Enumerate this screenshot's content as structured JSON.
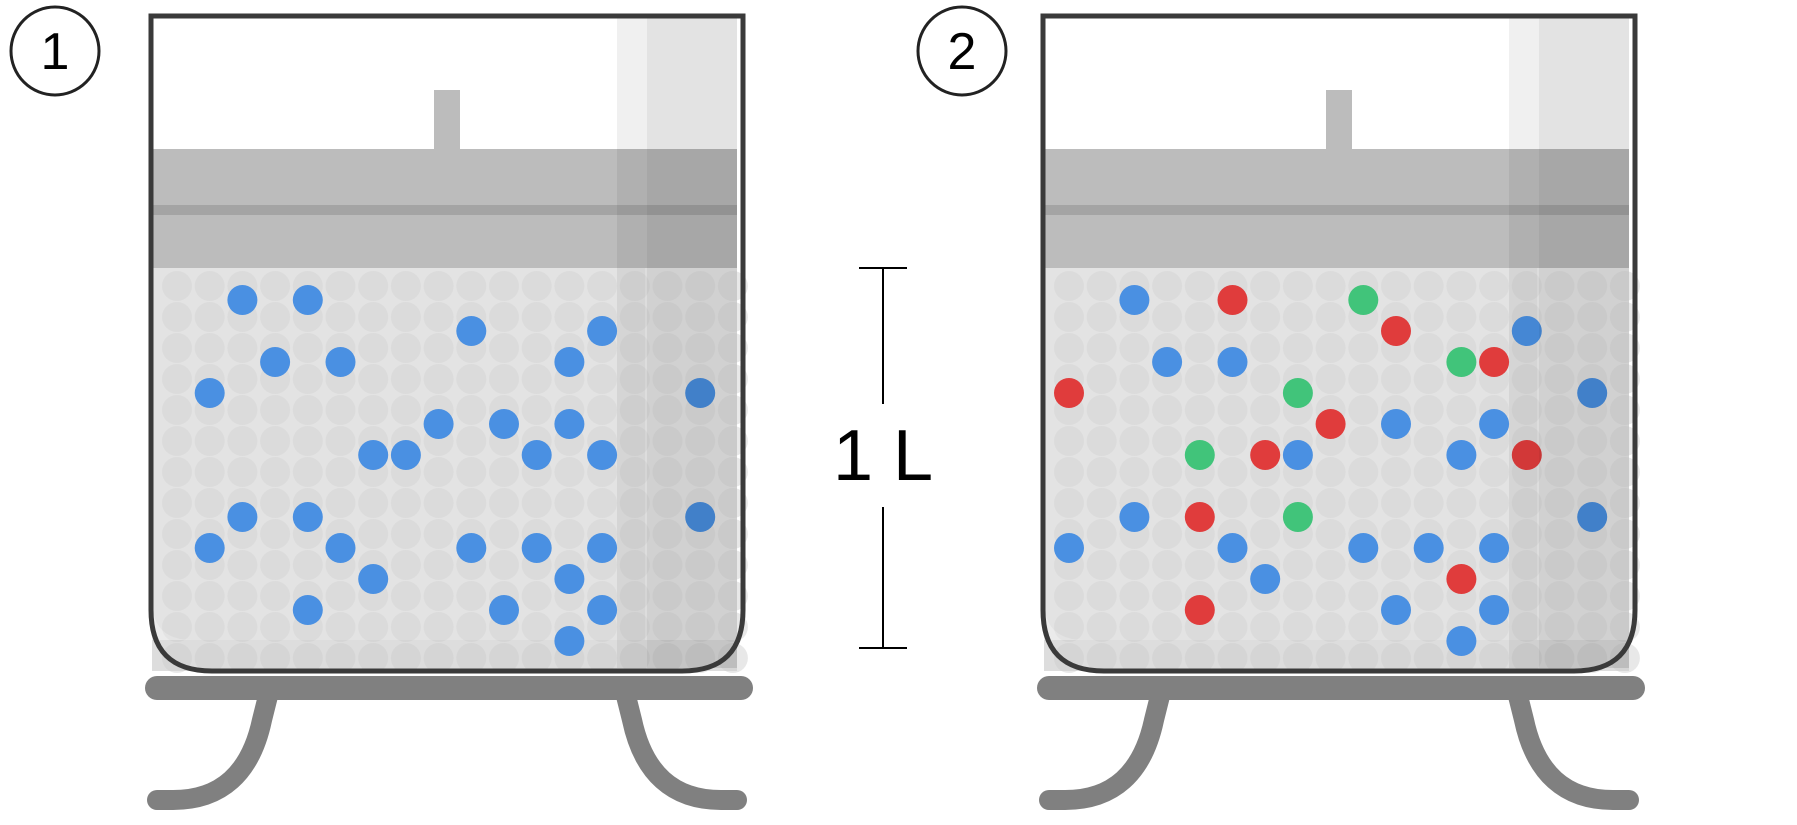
{
  "diagram": {
    "containers": [
      {
        "number": "1",
        "particles": [
          {
            "color": "blue",
            "col": 2,
            "row": 1
          },
          {
            "color": "blue",
            "col": 4,
            "row": 1
          },
          {
            "color": "blue",
            "col": 9,
            "row": 2
          },
          {
            "color": "blue",
            "col": 13,
            "row": 2
          },
          {
            "color": "blue",
            "col": 3,
            "row": 3
          },
          {
            "color": "blue",
            "col": 5,
            "row": 3
          },
          {
            "color": "blue",
            "col": 12,
            "row": 3
          },
          {
            "color": "blue",
            "col": 1,
            "row": 4
          },
          {
            "color": "blue",
            "col": 16,
            "row": 4
          },
          {
            "color": "blue",
            "col": 8,
            "row": 5
          },
          {
            "color": "blue",
            "col": 10,
            "row": 5
          },
          {
            "color": "blue",
            "col": 12,
            "row": 5
          },
          {
            "color": "blue",
            "col": 6,
            "row": 6
          },
          {
            "color": "blue",
            "col": 7,
            "row": 6
          },
          {
            "color": "blue",
            "col": 11,
            "row": 6
          },
          {
            "color": "blue",
            "col": 13,
            "row": 6
          },
          {
            "color": "blue",
            "col": 2,
            "row": 8
          },
          {
            "color": "blue",
            "col": 4,
            "row": 8
          },
          {
            "color": "blue",
            "col": 16,
            "row": 8
          },
          {
            "color": "blue",
            "col": 1,
            "row": 9
          },
          {
            "color": "blue",
            "col": 5,
            "row": 9
          },
          {
            "color": "blue",
            "col": 9,
            "row": 9
          },
          {
            "color": "blue",
            "col": 11,
            "row": 9
          },
          {
            "color": "blue",
            "col": 13,
            "row": 9
          },
          {
            "color": "blue",
            "col": 6,
            "row": 10
          },
          {
            "color": "blue",
            "col": 12,
            "row": 10
          },
          {
            "color": "blue",
            "col": 4,
            "row": 11
          },
          {
            "color": "blue",
            "col": 10,
            "row": 11
          },
          {
            "color": "blue",
            "col": 13,
            "row": 11
          },
          {
            "color": "blue",
            "col": 12,
            "row": 12
          }
        ]
      },
      {
        "number": "2",
        "particles": [
          {
            "color": "blue",
            "col": 2,
            "row": 1
          },
          {
            "color": "red",
            "col": 5,
            "row": 1
          },
          {
            "color": "green",
            "col": 9,
            "row": 1
          },
          {
            "color": "red",
            "col": 10,
            "row": 2
          },
          {
            "color": "blue",
            "col": 14,
            "row": 2
          },
          {
            "color": "blue",
            "col": 3,
            "row": 3
          },
          {
            "color": "blue",
            "col": 5,
            "row": 3
          },
          {
            "color": "green",
            "col": 12,
            "row": 3
          },
          {
            "color": "red",
            "col": 13,
            "row": 3
          },
          {
            "color": "red",
            "col": 0,
            "row": 4
          },
          {
            "color": "green",
            "col": 7,
            "row": 4
          },
          {
            "color": "blue",
            "col": 16,
            "row": 4
          },
          {
            "color": "red",
            "col": 8,
            "row": 5
          },
          {
            "color": "blue",
            "col": 10,
            "row": 5
          },
          {
            "color": "blue",
            "col": 13,
            "row": 5
          },
          {
            "color": "green",
            "col": 4,
            "row": 6
          },
          {
            "color": "red",
            "col": 6,
            "row": 6
          },
          {
            "color": "blue",
            "col": 7,
            "row": 6
          },
          {
            "color": "blue",
            "col": 12,
            "row": 6
          },
          {
            "color": "red",
            "col": 14,
            "row": 6
          },
          {
            "color": "blue",
            "col": 2,
            "row": 8
          },
          {
            "color": "red",
            "col": 4,
            "row": 8
          },
          {
            "color": "green",
            "col": 7,
            "row": 8
          },
          {
            "color": "blue",
            "col": 16,
            "row": 8
          },
          {
            "color": "blue",
            "col": 0,
            "row": 9
          },
          {
            "color": "blue",
            "col": 5,
            "row": 9
          },
          {
            "color": "blue",
            "col": 9,
            "row": 9
          },
          {
            "color": "blue",
            "col": 11,
            "row": 9
          },
          {
            "color": "blue",
            "col": 13,
            "row": 9
          },
          {
            "color": "blue",
            "col": 6,
            "row": 10
          },
          {
            "color": "red",
            "col": 12,
            "row": 10
          },
          {
            "color": "red",
            "col": 4,
            "row": 11
          },
          {
            "color": "blue",
            "col": 10,
            "row": 11
          },
          {
            "color": "blue",
            "col": 13,
            "row": 11
          },
          {
            "color": "blue",
            "col": 12,
            "row": 12
          }
        ]
      }
    ],
    "volume_label": "1 L"
  },
  "colors": {
    "blue": "#4a90e2",
    "red": "#e03c3c",
    "green": "#41c47a",
    "outline": "#3a3a3a",
    "stand": "#808080"
  }
}
